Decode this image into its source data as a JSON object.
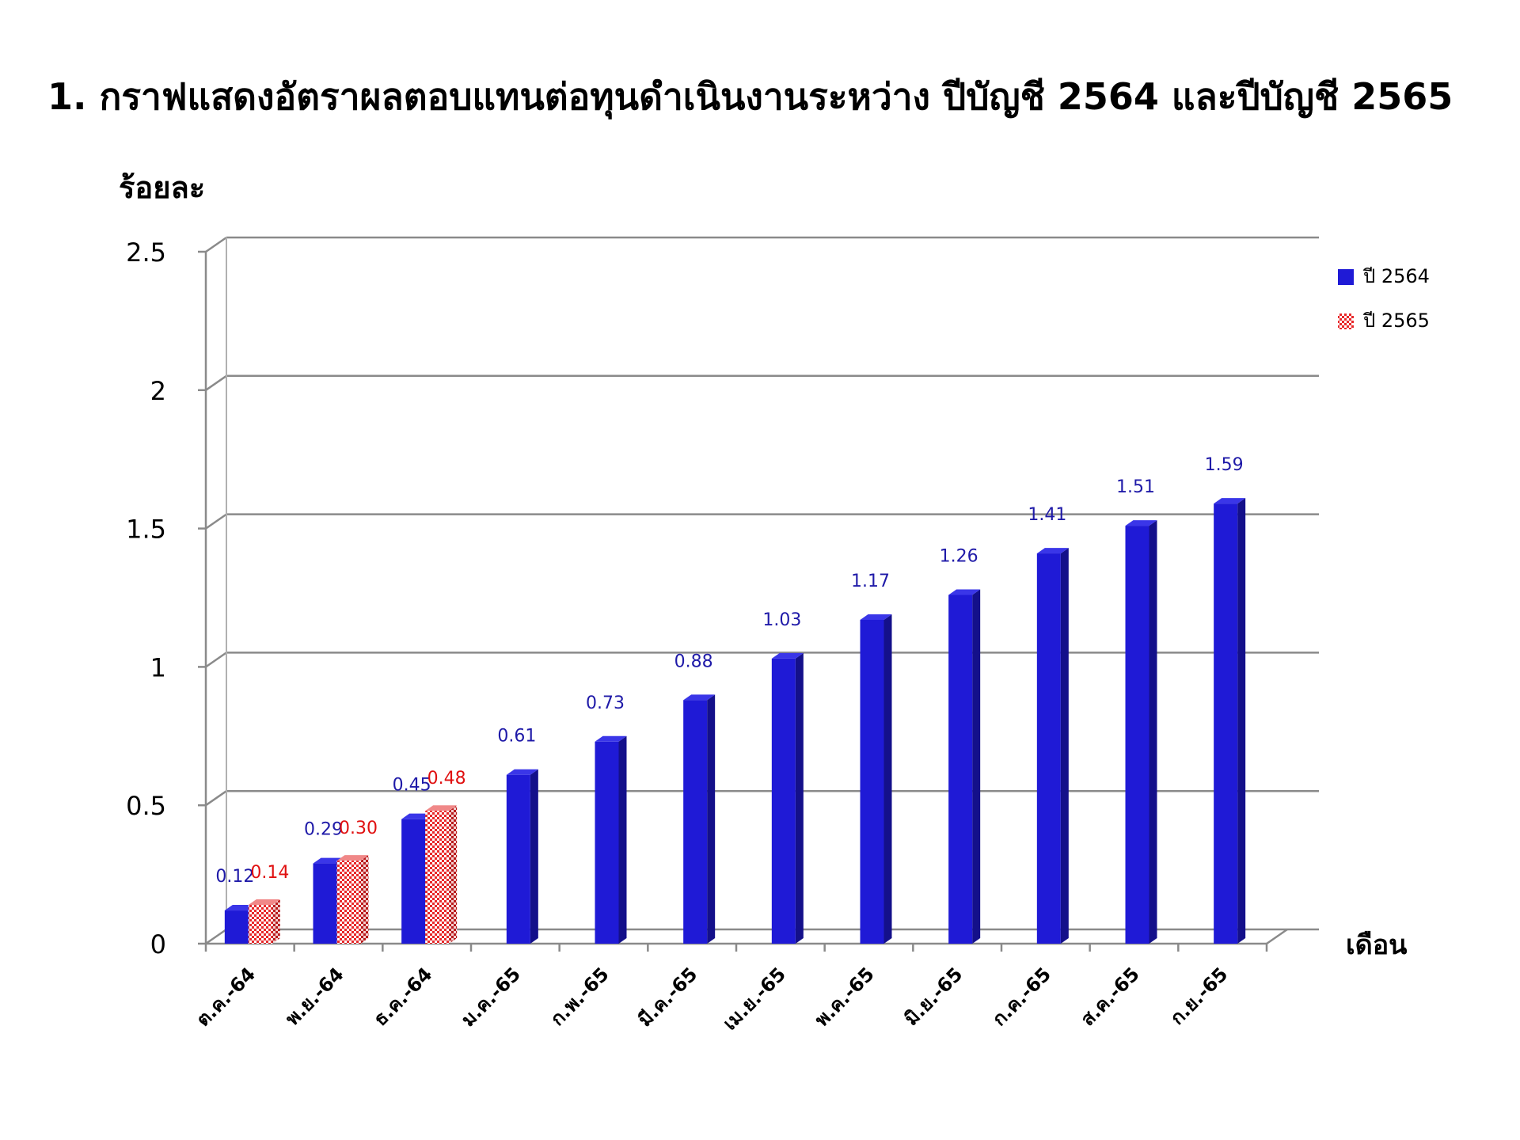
{
  "chart_data": {
    "type": "bar",
    "title": "1. กราฟแสดงอัตราผลตอบแทนต่อทุนดำเนินงานระหว่าง ปีบัญชี 2564 และปีบัญชี 2565",
    "ylabel": "ร้อยละ",
    "xlabel": "เดือน",
    "ylim": [
      0,
      2.5
    ],
    "yticks": [
      "0",
      "0.5",
      "1",
      "1.5",
      "2",
      "2.5"
    ],
    "ytick_values": [
      0,
      0.5,
      1,
      1.5,
      2,
      2.5
    ],
    "grid": true,
    "legend_position": "top-right",
    "categories": [
      "ต.ค.-64",
      "พ.ย.-64",
      "ธ.ค.-64",
      "ม.ค.-65",
      "ก.พ.-65",
      "มี.ค.-65",
      "เม.ย.-65",
      "พ.ค.-65",
      "มิ.ย.-65",
      "ก.ค.-65",
      "ส.ค.-65",
      "ก.ย.-65"
    ],
    "series": [
      {
        "name": "ปี 2564",
        "color": "#1f1ad6",
        "label_color": "#1f1aa8",
        "values": [
          0.12,
          0.29,
          0.45,
          0.61,
          0.73,
          0.88,
          1.03,
          1.17,
          1.26,
          1.41,
          1.51,
          1.59
        ],
        "labels": [
          "0.12",
          "0.29",
          "0.45",
          "0.61",
          "0.73",
          "0.88",
          "1.03",
          "1.17",
          "1.26",
          "1.41",
          "1.51",
          "1.59"
        ]
      },
      {
        "name": "ปี 2565",
        "color": "#e8282a",
        "label_color": "#e01010",
        "pattern": "checkered",
        "values": [
          0.14,
          0.3,
          0.48,
          null,
          null,
          null,
          null,
          null,
          null,
          null,
          null,
          null
        ],
        "labels": [
          "0.14",
          "0.30",
          "0.48",
          "",
          "",
          "",
          "",
          "",
          "",
          "",
          "",
          ""
        ]
      }
    ]
  }
}
